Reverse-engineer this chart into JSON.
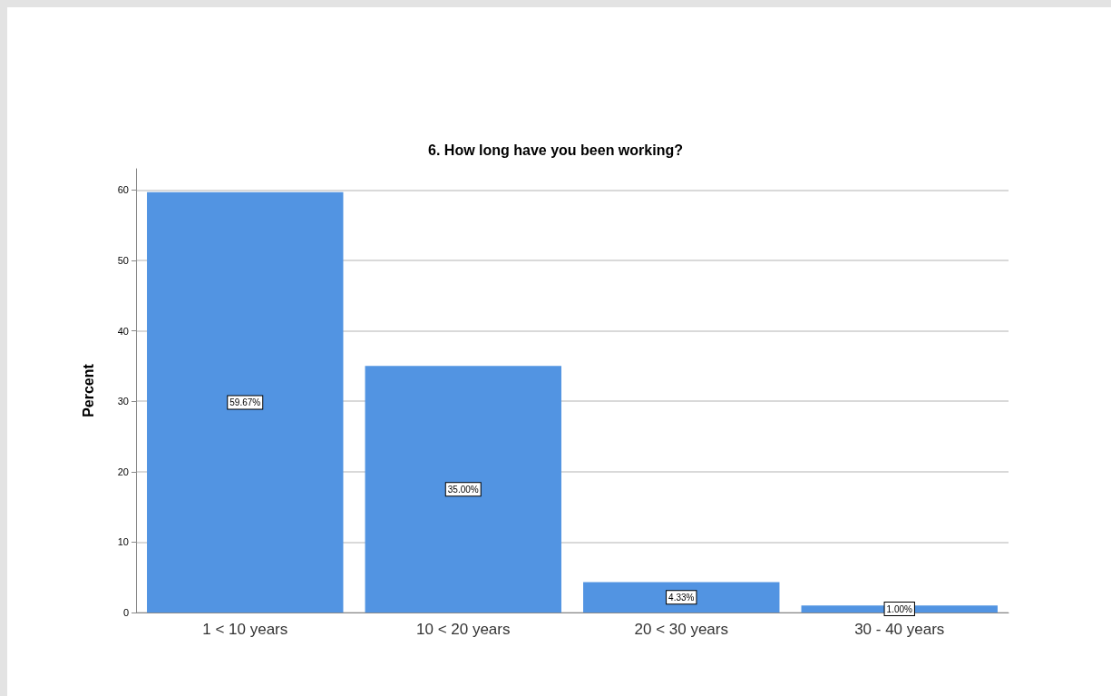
{
  "chart_data": {
    "type": "bar",
    "title": "6. How long have you been working?",
    "ylabel": "Percent",
    "categories": [
      "1 < 10 years",
      "10 < 20 years",
      "20 < 30 years",
      "30 - 40 years"
    ],
    "values": [
      59.67,
      35.0,
      4.33,
      1.0
    ],
    "value_labels": [
      "59.67%",
      "35.00%",
      "4.33%",
      "1.00%"
    ],
    "color": "#5294e2",
    "ylim": [
      0,
      63
    ],
    "yticks": [
      0,
      10,
      20,
      30,
      40,
      50,
      60
    ],
    "grid": "y"
  }
}
